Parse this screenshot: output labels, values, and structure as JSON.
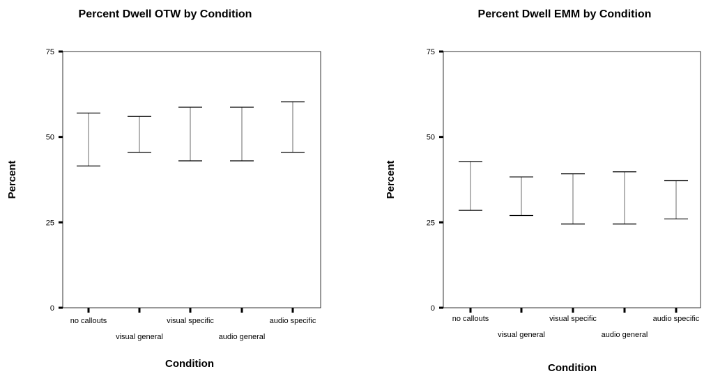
{
  "chart_data": [
    {
      "type": "errorbar",
      "title": "Percent Dwell OTW by Condition",
      "xlabel": "Condition",
      "ylabel": "Percent",
      "ylim": [
        0,
        75
      ],
      "yticks": [
        "0",
        "25",
        "50",
        "75"
      ],
      "categories": [
        "no callouts",
        "visual general",
        "visual specific",
        "audio general",
        "audio specific"
      ],
      "lower": [
        41.5,
        45.5,
        43,
        43,
        45.5
      ],
      "upper": [
        57,
        56,
        58.7,
        58.7,
        60.3
      ],
      "grid": false
    },
    {
      "type": "errorbar",
      "title": "Percent Dwell EMM by Condition",
      "xlabel": "Condition",
      "ylabel": "Percent",
      "ylim": [
        0,
        75
      ],
      "yticks": [
        "0",
        "25",
        "50",
        "75"
      ],
      "categories": [
        "no callouts",
        "visual general",
        "visual specific",
        "audio general",
        "audio specific"
      ],
      "lower": [
        28.5,
        27,
        24.5,
        24.5,
        26
      ],
      "upper": [
        42.8,
        38.3,
        39.2,
        39.8,
        37.2
      ],
      "grid": false
    }
  ]
}
